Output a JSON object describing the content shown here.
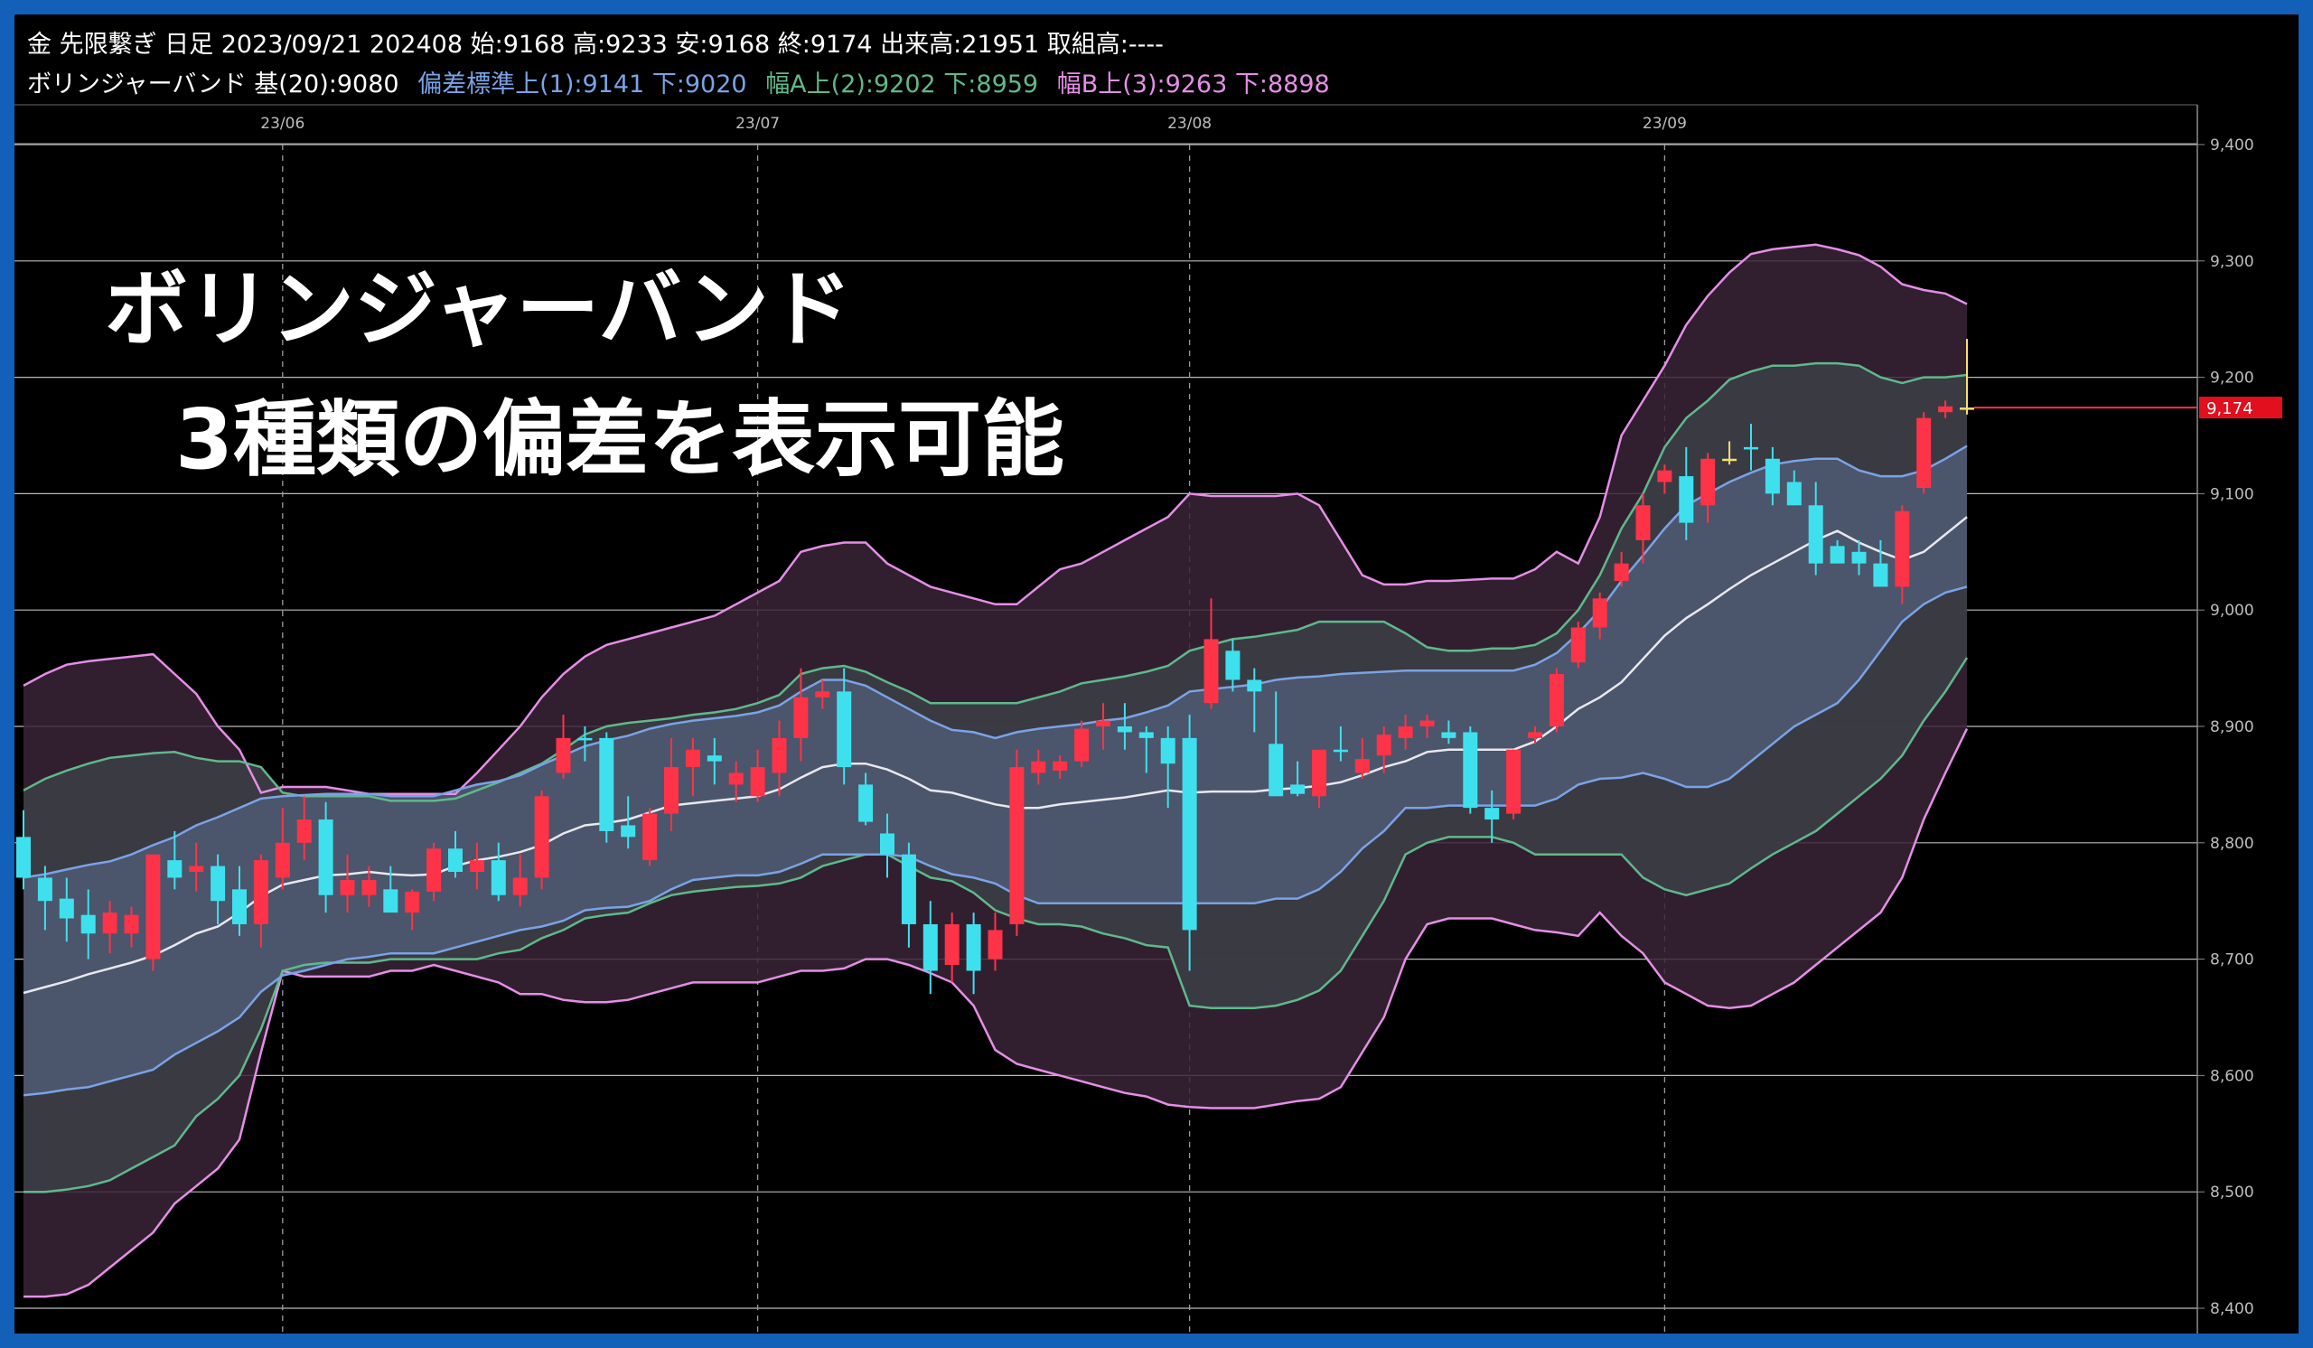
{
  "header": {
    "line1": "金 先限繋ぎ 日足 2023/09/21 202408 始:9168 高:9233 安:9168 終:9174 出来高:21951 取組高:----",
    "line2": {
      "base": "ボリンジャーバンド 基(20):9080",
      "sigma1": "偏差標準上(1):9141 下:9020",
      "sigma2": "幅A上(2):9202 下:8959",
      "sigma3": "幅B上(3):9263 下:8898"
    }
  },
  "overlay": {
    "line1": "ボリンジャーバンド",
    "line2": "3種類の偏差を表示可能"
  },
  "colors": {
    "up": "#ff3347",
    "down": "#3fe0ee",
    "cross": "#f5e070",
    "mid": "#e8e8f0",
    "sigma1": "#7aa3e6",
    "sigma2": "#5fb98a",
    "sigma3": "#e58ee6",
    "price_label_bg": "#e2101f"
  },
  "chart_data": {
    "type": "candlestick",
    "y_range": [
      8400,
      9400
    ],
    "y_ticks": [
      8400,
      8500,
      8600,
      8700,
      8800,
      8900,
      9000,
      9100,
      9200,
      9300,
      9400
    ],
    "y_tick_labels": [
      "8,400",
      "8,500",
      "8,600",
      "8,700",
      "8,800",
      "8,900",
      "9,000",
      "9,100",
      "9,200",
      "9,300",
      "9,400"
    ],
    "x_labels": [
      {
        "label": "23/06",
        "index": 12
      },
      {
        "label": "23/07",
        "index": 34
      },
      {
        "label": "23/08",
        "index": 54
      },
      {
        "label": "23/09",
        "index": 76
      }
    ],
    "last_price": 9174,
    "last_price_label": "9,174",
    "ohlc": [
      [
        8805,
        8828,
        8760,
        8770
      ],
      [
        8770,
        8780,
        8725,
        8750
      ],
      [
        8752,
        8770,
        8715,
        8735
      ],
      [
        8738,
        8760,
        8700,
        8722
      ],
      [
        8722,
        8750,
        8705,
        8740
      ],
      [
        8722,
        8745,
        8710,
        8738
      ],
      [
        8700,
        8790,
        8690,
        8790
      ],
      [
        8785,
        8810,
        8760,
        8770
      ],
      [
        8775,
        8800,
        8758,
        8780
      ],
      [
        8780,
        8790,
        8730,
        8750
      ],
      [
        8760,
        8780,
        8720,
        8730
      ],
      [
        8730,
        8790,
        8710,
        8785
      ],
      [
        8770,
        8830,
        8760,
        8800
      ],
      [
        8800,
        8840,
        8785,
        8820
      ],
      [
        8820,
        8835,
        8740,
        8755
      ],
      [
        8755,
        8790,
        8740,
        8768
      ],
      [
        8755,
        8780,
        8745,
        8768
      ],
      [
        8760,
        8780,
        8740,
        8740
      ],
      [
        8740,
        8760,
        8725,
        8758
      ],
      [
        8758,
        8800,
        8750,
        8795
      ],
      [
        8795,
        8810,
        8770,
        8775
      ],
      [
        8775,
        8800,
        8760,
        8785
      ],
      [
        8785,
        8800,
        8750,
        8755
      ],
      [
        8755,
        8790,
        8745,
        8770
      ],
      [
        8770,
        8845,
        8760,
        8840
      ],
      [
        8860,
        8910,
        8855,
        8890
      ],
      [
        8890,
        8900,
        8870,
        8888
      ],
      [
        8890,
        8895,
        8800,
        8810
      ],
      [
        8815,
        8840,
        8795,
        8805
      ],
      [
        8785,
        8830,
        8780,
        8825
      ],
      [
        8825,
        8890,
        8810,
        8865
      ],
      [
        8865,
        8890,
        8840,
        8880
      ],
      [
        8875,
        8890,
        8850,
        8870
      ],
      [
        8850,
        8870,
        8835,
        8860
      ],
      [
        8840,
        8880,
        8835,
        8865
      ],
      [
        8860,
        8905,
        8840,
        8890
      ],
      [
        8890,
        8950,
        8870,
        8925
      ],
      [
        8925,
        8940,
        8915,
        8930
      ],
      [
        8930,
        8950,
        8850,
        8865
      ],
      [
        8850,
        8860,
        8815,
        8818
      ],
      [
        8808,
        8825,
        8770,
        8790
      ],
      [
        8790,
        8800,
        8710,
        8730
      ],
      [
        8730,
        8750,
        8670,
        8690
      ],
      [
        8695,
        8740,
        8680,
        8730
      ],
      [
        8730,
        8740,
        8670,
        8690
      ],
      [
        8700,
        8740,
        8690,
        8725
      ],
      [
        8730,
        8880,
        8720,
        8865
      ],
      [
        8860,
        8880,
        8850,
        8870
      ],
      [
        8862,
        8875,
        8855,
        8870
      ],
      [
        8870,
        8905,
        8865,
        8898
      ],
      [
        8900,
        8920,
        8880,
        8905
      ],
      [
        8900,
        8920,
        8880,
        8895
      ],
      [
        8895,
        8900,
        8860,
        8890
      ],
      [
        8890,
        8900,
        8830,
        8868
      ],
      [
        8890,
        8910,
        8690,
        8725
      ],
      [
        8920,
        9010,
        8915,
        8975
      ],
      [
        8965,
        8975,
        8930,
        8940
      ],
      [
        8940,
        8950,
        8895,
        8930
      ],
      [
        8885,
        8930,
        8850,
        8840
      ],
      [
        8850,
        8870,
        8840,
        8842
      ],
      [
        8840,
        8880,
        8830,
        8880
      ],
      [
        8880,
        8900,
        8870,
        8878
      ],
      [
        8860,
        8890,
        8855,
        8872
      ],
      [
        8875,
        8900,
        8860,
        8893
      ],
      [
        8890,
        8910,
        8880,
        8900
      ],
      [
        8900,
        8910,
        8890,
        8905
      ],
      [
        8895,
        8905,
        8885,
        8890
      ],
      [
        8895,
        8900,
        8825,
        8830
      ],
      [
        8830,
        8845,
        8800,
        8820
      ],
      [
        8825,
        8880,
        8820,
        8880
      ],
      [
        8890,
        8900,
        8885,
        8895
      ],
      [
        8900,
        8950,
        8895,
        8945
      ],
      [
        8955,
        8990,
        8950,
        8985
      ],
      [
        8985,
        9015,
        8975,
        9010
      ],
      [
        9025,
        9050,
        9020,
        9040
      ],
      [
        9060,
        9100,
        9040,
        9090
      ],
      [
        9110,
        9125,
        9100,
        9120
      ],
      [
        9115,
        9140,
        9060,
        9075
      ],
      [
        9090,
        9135,
        9075,
        9130
      ],
      [
        9130,
        9145,
        9125,
        9130
      ],
      [
        9140,
        9160,
        9120,
        9138
      ],
      [
        9130,
        9140,
        9090,
        9100
      ],
      [
        9110,
        9120,
        9090,
        9090
      ],
      [
        9090,
        9110,
        9030,
        9040
      ],
      [
        9055,
        9060,
        9040,
        9040
      ],
      [
        9050,
        9060,
        9030,
        9040
      ],
      [
        9040,
        9060,
        9020,
        9020
      ],
      [
        9020,
        9090,
        9005,
        9085
      ],
      [
        9105,
        9170,
        9100,
        9165
      ],
      [
        9170,
        9180,
        9165,
        9175
      ],
      [
        9174,
        9233,
        9168,
        9174
      ]
    ],
    "mid": [
      8671,
      8676,
      8681,
      8687,
      8692,
      8697,
      8703,
      8712,
      8722,
      8728,
      8740,
      8754,
      8764,
      8768,
      8772,
      8773,
      8775,
      8773,
      8772,
      8773,
      8780,
      8785,
      8788,
      8792,
      8798,
      8808,
      8815,
      8817,
      8820,
      8826,
      8832,
      8834,
      8836,
      8838,
      8840,
      8846,
      8856,
      8865,
      8868,
      8868,
      8863,
      8855,
      8845,
      8843,
      8838,
      8833,
      8830,
      8830,
      8833,
      8835,
      8837,
      8839,
      8842,
      8845,
      8843,
      8844,
      8844,
      8844,
      8846,
      8847,
      8849,
      8852,
      8858,
      8865,
      8870,
      8878,
      8880,
      8880,
      8880,
      8880,
      8887,
      8900,
      8915,
      8925,
      8938,
      8958,
      8978,
      8993,
      9005,
      9018,
      9030,
      9040,
      9050,
      9060,
      9068,
      9058,
      9050,
      9043,
      9050,
      9065,
      9080
    ],
    "upper1": [
      8770,
      8773,
      8777,
      8781,
      8784,
      8790,
      8798,
      8805,
      8815,
      8822,
      8830,
      8838,
      8840,
      8841,
      8842,
      8842,
      8842,
      8840,
      8840,
      8840,
      8845,
      8850,
      8853,
      8858,
      8867,
      8875,
      8883,
      8888,
      8892,
      8898,
      8902,
      8905,
      8907,
      8909,
      8912,
      8918,
      8930,
      8940,
      8940,
      8935,
      8925,
      8915,
      8905,
      8897,
      8895,
      8890,
      8895,
      8898,
      8900,
      8902,
      8905,
      8907,
      8912,
      8918,
      8930,
      8932,
      8934,
      8936,
      8940,
      8942,
      8943,
      8945,
      8946,
      8947,
      8948,
      8948,
      8948,
      8948,
      8948,
      8948,
      8953,
      8963,
      8980,
      9000,
      9025,
      9047,
      9070,
      9090,
      9100,
      9110,
      9118,
      9125,
      9128,
      9130,
      9130,
      9120,
      9115,
      9115,
      9120,
      9130,
      9141
    ],
    "lower1": [
      8583,
      8585,
      8588,
      8590,
      8595,
      8600,
      8605,
      8618,
      8628,
      8638,
      8650,
      8672,
      8686,
      8690,
      8695,
      8700,
      8702,
      8705,
      8705,
      8705,
      8710,
      8715,
      8720,
      8725,
      8728,
      8733,
      8742,
      8744,
      8745,
      8750,
      8760,
      8768,
      8770,
      8772,
      8772,
      8775,
      8782,
      8790,
      8790,
      8790,
      8790,
      8788,
      8780,
      8773,
      8770,
      8765,
      8755,
      8748,
      8748,
      8748,
      8748,
      8748,
      8748,
      8748,
      8748,
      8748,
      8748,
      8748,
      8752,
      8752,
      8760,
      8775,
      8795,
      8810,
      8830,
      8830,
      8832,
      8832,
      8832,
      8832,
      8832,
      8838,
      8850,
      8855,
      8856,
      8860,
      8855,
      8848,
      8848,
      8855,
      8870,
      8885,
      8900,
      8910,
      8920,
      8940,
      8965,
      8990,
      9005,
      9015,
      9020
    ],
    "upper2": [
      8845,
      8855,
      8862,
      8868,
      8873,
      8875,
      8877,
      8878,
      8873,
      8870,
      8870,
      8865,
      8843,
      8840,
      8840,
      8840,
      8840,
      8836,
      8836,
      8836,
      8838,
      8845,
      8852,
      8860,
      8868,
      8880,
      8893,
      8900,
      8903,
      8905,
      8907,
      8910,
      8912,
      8915,
      8920,
      8927,
      8945,
      8950,
      8952,
      8947,
      8938,
      8930,
      8920,
      8920,
      8920,
      8920,
      8920,
      8925,
      8930,
      8937,
      8940,
      8943,
      8947,
      8952,
      8965,
      8970,
      8975,
      8977,
      8980,
      8983,
      8990,
      8990,
      8990,
      8990,
      8980,
      8968,
      8965,
      8965,
      8967,
      8967,
      8970,
      8980,
      9000,
      9030,
      9070,
      9100,
      9140,
      9165,
      9180,
      9198,
      9205,
      9210,
      9210,
      9212,
      9212,
      9210,
      9200,
      9195,
      9200,
      9200,
      9202
    ],
    "lower2": [
      8500,
      8500,
      8502,
      8505,
      8510,
      8520,
      8530,
      8540,
      8565,
      8580,
      8600,
      8640,
      8690,
      8695,
      8697,
      8697,
      8697,
      8700,
      8700,
      8700,
      8700,
      8700,
      8705,
      8708,
      8718,
      8725,
      8735,
      8738,
      8740,
      8748,
      8755,
      8758,
      8760,
      8762,
      8763,
      8765,
      8770,
      8780,
      8785,
      8790,
      8790,
      8780,
      8770,
      8767,
      8757,
      8742,
      8735,
      8730,
      8730,
      8728,
      8722,
      8718,
      8712,
      8710,
      8660,
      8658,
      8658,
      8658,
      8660,
      8665,
      8673,
      8690,
      8720,
      8750,
      8790,
      8800,
      8805,
      8805,
      8805,
      8800,
      8790,
      8790,
      8790,
      8790,
      8790,
      8770,
      8760,
      8755,
      8760,
      8765,
      8778,
      8790,
      8800,
      8810,
      8825,
      8840,
      8855,
      8875,
      8905,
      8930,
      8959
    ],
    "upper3": [
      8935,
      8945,
      8953,
      8956,
      8958,
      8960,
      8962,
      8945,
      8928,
      8900,
      8880,
      8843,
      8848,
      8848,
      8848,
      8845,
      8842,
      8842,
      8842,
      8842,
      8842,
      8860,
      8880,
      8900,
      8925,
      8945,
      8960,
      8970,
      8975,
      8980,
      8985,
      8990,
      8995,
      9005,
      9015,
      9025,
      9050,
      9055,
      9058,
      9058,
      9040,
      9030,
      9020,
      9015,
      9010,
      9005,
      9005,
      9020,
      9035,
      9040,
      9050,
      9060,
      9070,
      9080,
      9100,
      9098,
      9098,
      9098,
      9098,
      9100,
      9090,
      9060,
      9030,
      9022,
      9022,
      9025,
      9025,
      9026,
      9027,
      9027,
      9035,
      9050,
      9040,
      9080,
      9150,
      9180,
      9210,
      9245,
      9270,
      9290,
      9306,
      9310,
      9312,
      9314,
      9310,
      9305,
      9295,
      9280,
      9275,
      9272,
      9263
    ],
    "lower3": [
      8410,
      8410,
      8412,
      8420,
      8435,
      8450,
      8465,
      8490,
      8505,
      8520,
      8545,
      8620,
      8690,
      8685,
      8685,
      8685,
      8685,
      8690,
      8690,
      8695,
      8690,
      8685,
      8680,
      8670,
      8670,
      8665,
      8663,
      8663,
      8665,
      8670,
      8675,
      8680,
      8680,
      8680,
      8680,
      8685,
      8690,
      8690,
      8692,
      8700,
      8700,
      8695,
      8688,
      8680,
      8660,
      8622,
      8610,
      8605,
      8600,
      8595,
      8590,
      8585,
      8582,
      8575,
      8573,
      8572,
      8572,
      8572,
      8575,
      8578,
      8580,
      8590,
      8620,
      8650,
      8700,
      8730,
      8735,
      8735,
      8735,
      8730,
      8725,
      8723,
      8720,
      8740,
      8720,
      8705,
      8680,
      8670,
      8660,
      8658,
      8660,
      8670,
      8680,
      8695,
      8710,
      8725,
      8740,
      8770,
      8820,
      8860,
      8898
    ]
  }
}
